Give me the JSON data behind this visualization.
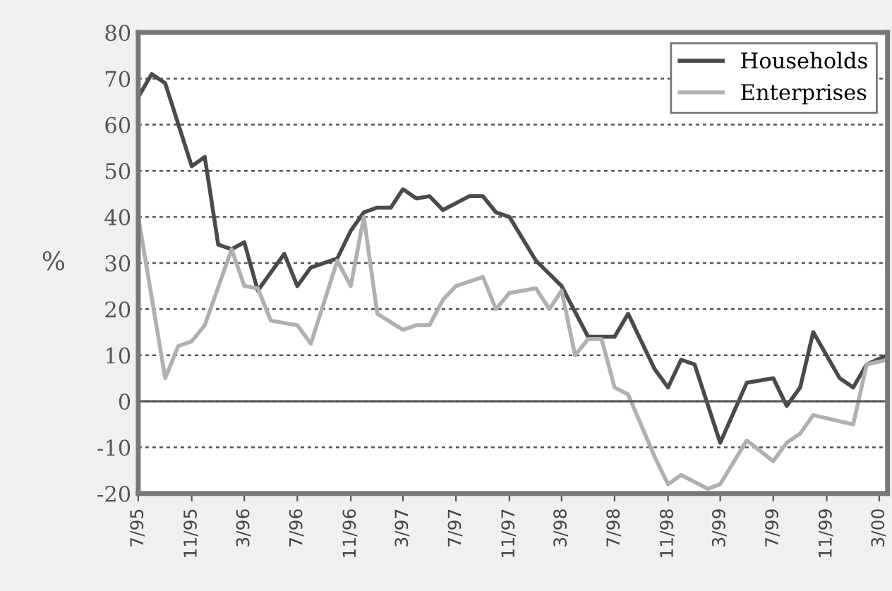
{
  "chart_data": {
    "type": "line",
    "ylabel": "%",
    "x": [
      "1995-07",
      "1995-08",
      "1995-09",
      "1995-11",
      "1995-12",
      "1996-01",
      "1996-02",
      "1996-03",
      "1996-04",
      "1996-06",
      "1996-07",
      "1996-08",
      "1996-09",
      "1996-10",
      "1996-11",
      "1996-12",
      "1997-01",
      "1997-02",
      "1997-03",
      "1997-04",
      "1997-05",
      "1997-06",
      "1997-08",
      "1997-09",
      "1997-10",
      "1997-11",
      "1998-01",
      "1998-03",
      "1998-05",
      "1998-07",
      "1998-08",
      "1998-10",
      "1998-11",
      "1998-12",
      "1999-01",
      "1999-03",
      "1999-05",
      "1999-07",
      "1999-08",
      "1999-09",
      "1999-10",
      "1999-12",
      "2000-01",
      "2000-02",
      "2000-03-20"
    ],
    "series": [
      {
        "name": "Households",
        "color": "#4a4a4a",
        "values": [
          66,
          71,
          69,
          51,
          53,
          34,
          33,
          34.5,
          24,
          32,
          25,
          29,
          30,
          31,
          37,
          41,
          42,
          42,
          46,
          44,
          44.5,
          41.5,
          44.5,
          44.5,
          41,
          40,
          30.5,
          25,
          14,
          14,
          19,
          7,
          3,
          9,
          8,
          -9,
          4,
          5,
          -1,
          3,
          15,
          5,
          3,
          8,
          10
        ]
      },
      {
        "name": "Enterprises",
        "color": "#b0b0b0",
        "x": [
          "1995-07",
          "1995-09",
          "1995-10",
          "1995-11",
          "1995-12",
          "1996-02",
          "1996-03",
          "1996-04",
          "1996-05",
          "1996-07",
          "1996-08",
          "1996-10",
          "1996-11",
          "1996-12",
          "1997-01",
          "1997-03",
          "1997-04",
          "1997-05",
          "1997-06",
          "1997-07",
          "1997-09",
          "1997-10",
          "1997-11",
          "1998-01",
          "1998-02",
          "1998-03",
          "1998-04",
          "1998-05",
          "1998-06",
          "1998-07",
          "1998-08",
          "1998-10",
          "1998-11",
          "1998-12",
          "1999-02",
          "1999-03",
          "1999-05",
          "1999-07",
          "1999-08",
          "1999-09",
          "1999-10",
          "2000-01",
          "2000-02",
          "2000-03-20"
        ],
        "values": [
          40,
          5,
          12,
          13,
          16.5,
          33,
          25,
          24.5,
          17.5,
          16.5,
          12.5,
          30.5,
          25,
          40,
          19,
          15.5,
          16.5,
          16.5,
          22,
          25,
          27,
          20,
          23.5,
          24.5,
          20,
          24,
          10,
          13.5,
          13.5,
          3,
          1.5,
          -12,
          -18,
          -16,
          -19,
          -18,
          -8.5,
          -13,
          -9,
          -7,
          -3,
          -5,
          8,
          9
        ]
      }
    ],
    "xlim": [
      "1995-07",
      "2000-03-20"
    ],
    "xticks": [
      {
        "value": "1995-07",
        "label": "7/95"
      },
      {
        "value": "1995-11",
        "label": "11/95"
      },
      {
        "value": "1996-03",
        "label": "3/96"
      },
      {
        "value": "1996-07",
        "label": "7/96"
      },
      {
        "value": "1996-11",
        "label": "11/96"
      },
      {
        "value": "1997-03",
        "label": "3/97"
      },
      {
        "value": "1997-07",
        "label": "7/97"
      },
      {
        "value": "1997-11",
        "label": "11/97"
      },
      {
        "value": "1998-03",
        "label": "3/98"
      },
      {
        "value": "1998-07",
        "label": "7/98"
      },
      {
        "value": "1998-11",
        "label": "11/98"
      },
      {
        "value": "1999-03",
        "label": "3/99"
      },
      {
        "value": "1999-07",
        "label": "7/99"
      },
      {
        "value": "1999-11",
        "label": "11/99"
      },
      {
        "value": "2000-03",
        "label": "3/00"
      }
    ],
    "ylim": [
      -20,
      80
    ],
    "yticks": [
      -20,
      -10,
      0,
      10,
      20,
      30,
      40,
      50,
      60,
      70,
      80
    ],
    "grid": "y",
    "line_style": "solid",
    "marker": "none",
    "legend": "top right",
    "ref_lines": [
      {
        "axis": "y",
        "value": 0,
        "color": "#555555",
        "line_style": "solid"
      }
    ]
  }
}
